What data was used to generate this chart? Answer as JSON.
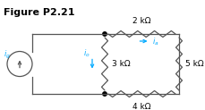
{
  "title": "Figure P2.21",
  "title_fontsize": 8,
  "title_fontweight": "bold",
  "bg_color": "#ffffff",
  "wire_color": "#555555",
  "resistor_color": "#555555",
  "current_color": "#00aaff",
  "dot_color": "#000000",
  "label_2k": "2 kΩ",
  "label_3k": "3 kΩ",
  "label_4k": "4 kΩ",
  "label_5k": "5 kΩ",
  "fig_width": 2.29,
  "fig_height": 1.23,
  "dpi": 100
}
